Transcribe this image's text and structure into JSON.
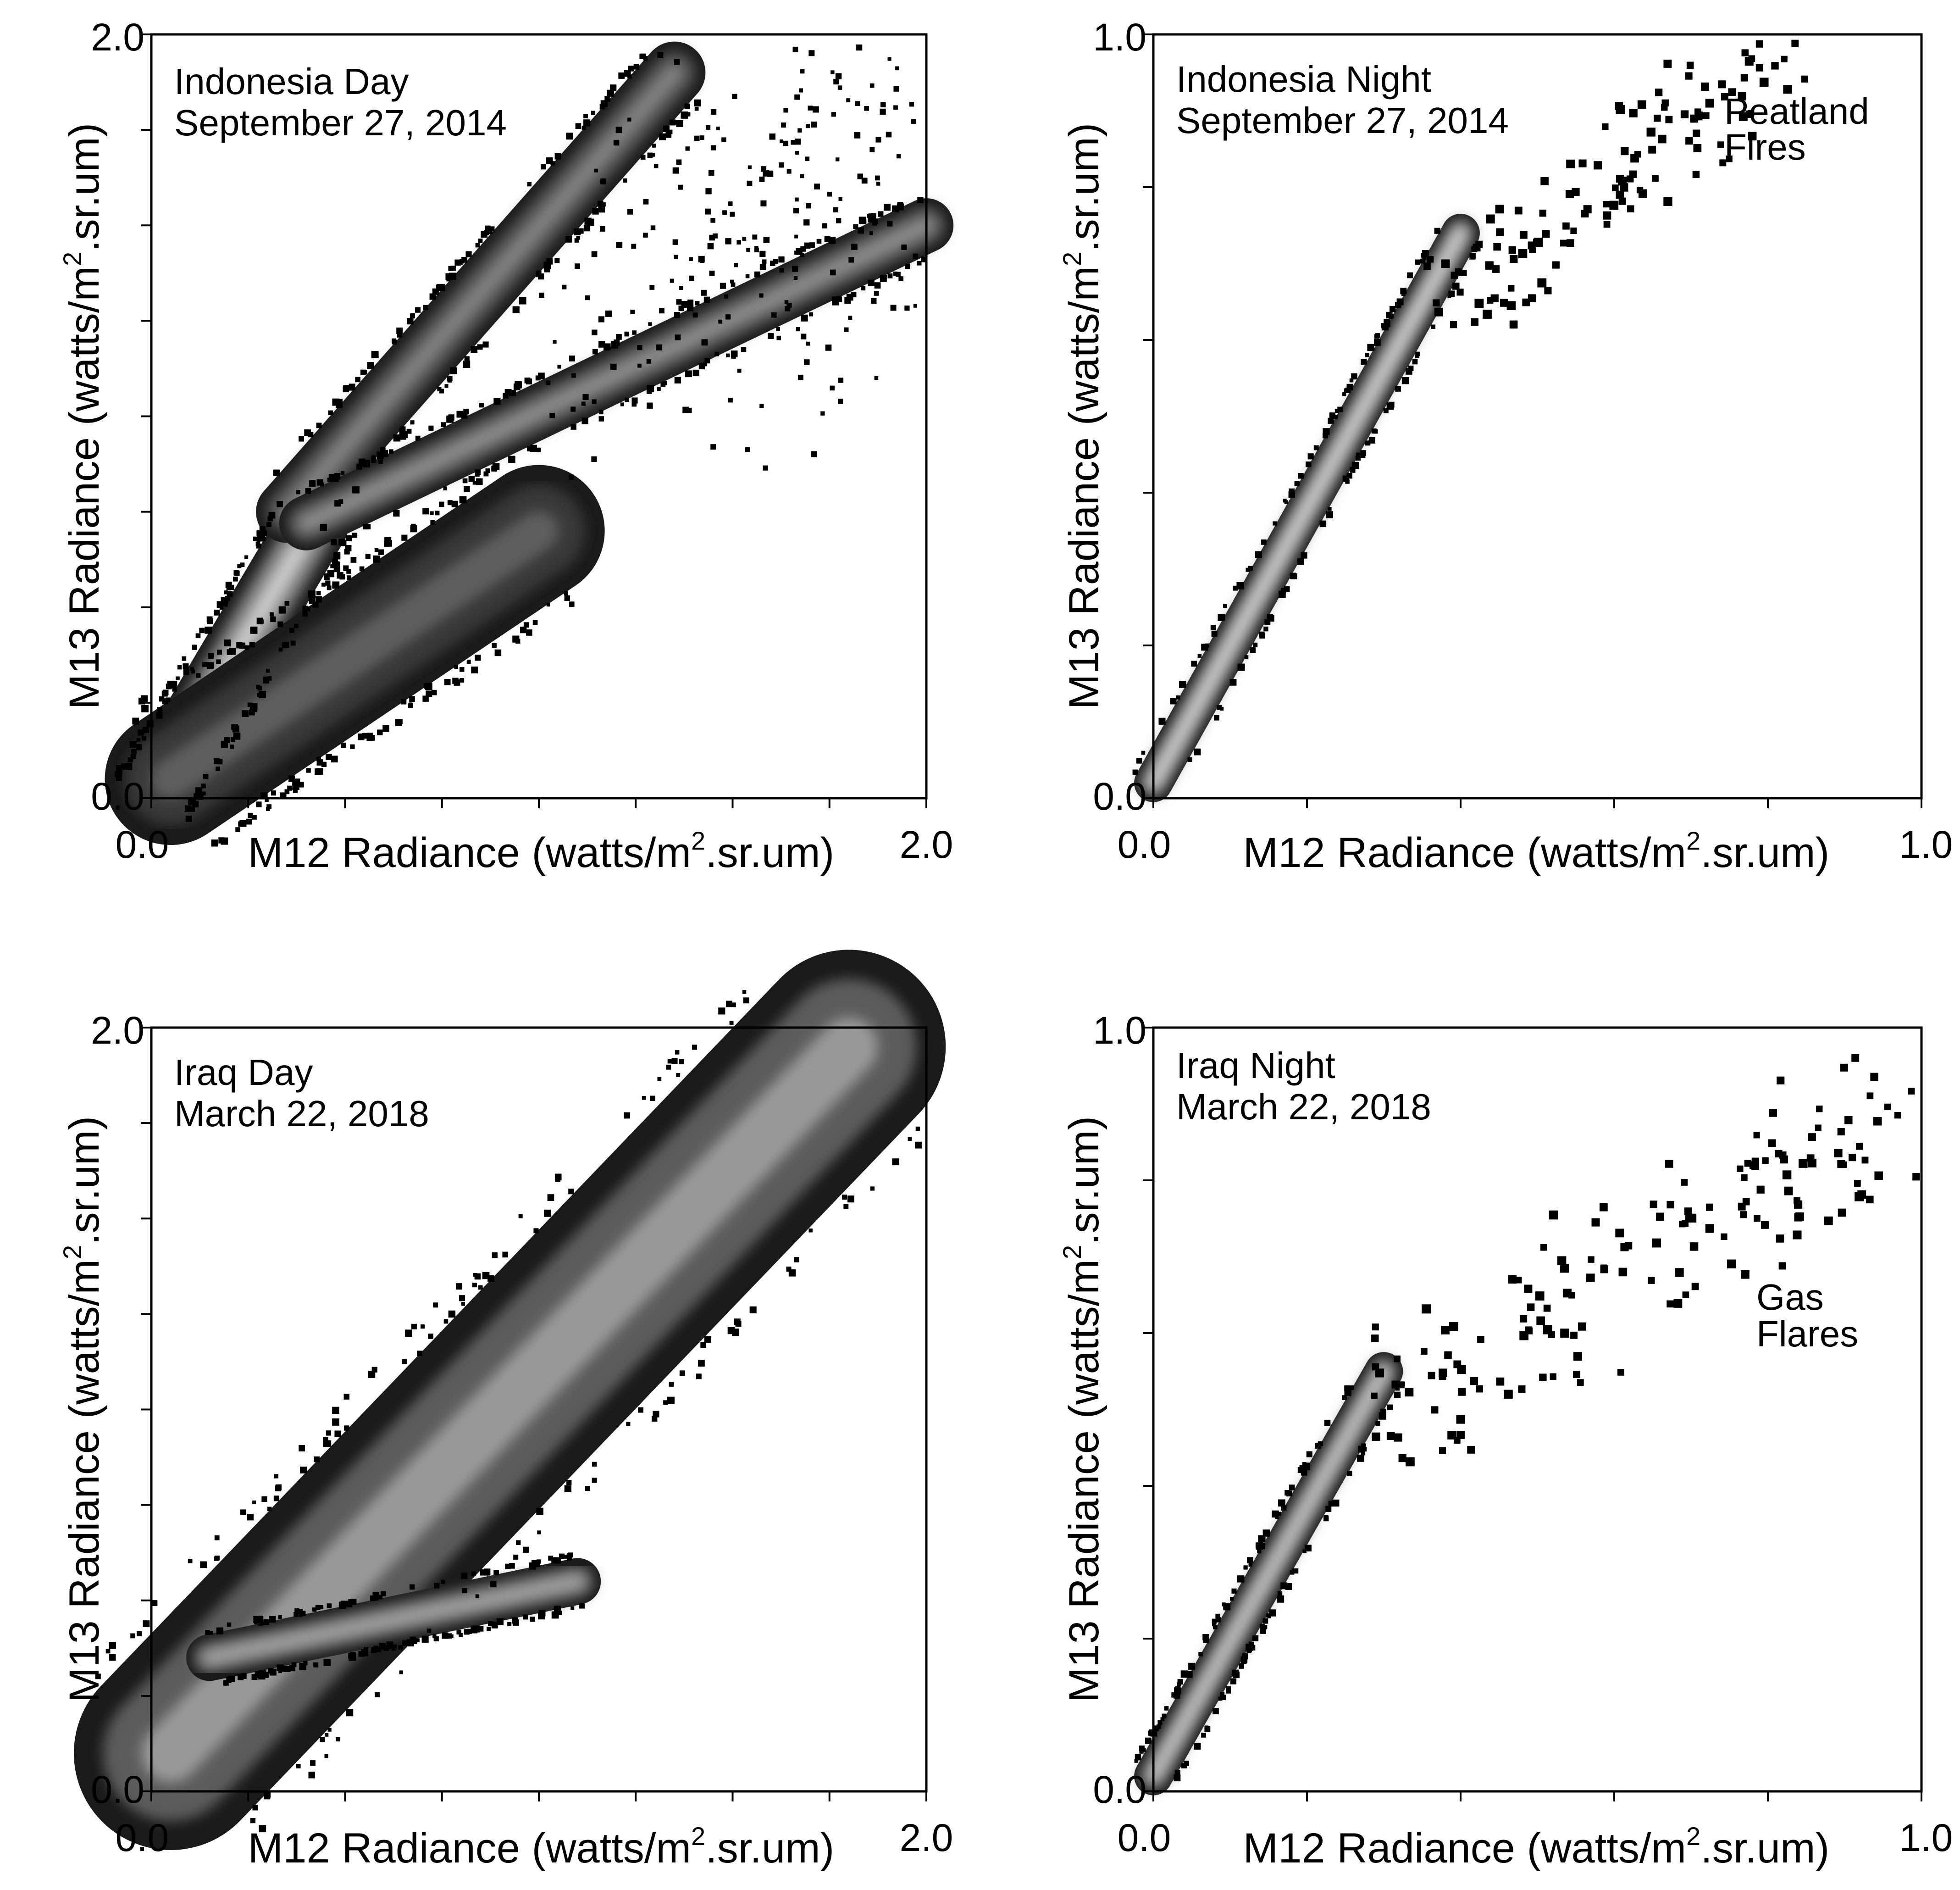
{
  "chart_data": [
    {
      "type": "heatmap",
      "title": "Indonesia Day",
      "subtitle": "September 27, 2014",
      "xlabel": "M12 Radiance (watts/m2.sr.um)",
      "ylabel": "M13 Radiance (watts/m2.sr.um)",
      "xlim": [
        0.0,
        2.0
      ],
      "ylim": [
        0.0,
        2.0
      ],
      "x_tick_labels": [
        "0.0",
        "2.0"
      ],
      "y_tick_labels": [
        "0.0",
        "2.0"
      ],
      "x_ticks": [
        0.0,
        0.25,
        0.5,
        0.75,
        1.0,
        1.25,
        1.5,
        1.75,
        2.0
      ],
      "y_ticks": [
        0.0,
        0.25,
        0.5,
        0.75,
        1.0,
        1.25,
        1.5,
        1.75,
        2.0
      ],
      "annotations": [],
      "features": [
        {
          "name": "core",
          "from": [
            0.0,
            0.0
          ],
          "to": [
            0.42,
            0.72
          ],
          "width": 0.18,
          "brightness": 0.85
        },
        {
          "name": "steep-branch",
          "from": [
            0.35,
            0.75
          ],
          "to": [
            1.35,
            1.9
          ],
          "width": 0.16,
          "brightness": 0.55
        },
        {
          "name": "shallow-branch",
          "from": [
            0.4,
            0.72
          ],
          "to": [
            2.0,
            1.5
          ],
          "width": 0.14,
          "brightness": 0.6
        },
        {
          "name": "lower-lobe",
          "from": [
            0.05,
            0.05
          ],
          "to": [
            1.0,
            0.7
          ],
          "width": 0.34,
          "brightness": 0.4
        },
        {
          "name": "scatter",
          "from": [
            1.3,
            1.2
          ],
          "to": [
            2.0,
            2.0
          ],
          "width": 0.8,
          "brightness": 0.0
        }
      ]
    },
    {
      "type": "heatmap",
      "title": "Indonesia Night",
      "subtitle": "September 27, 2014",
      "xlabel": "M12 Radiance (watts/m2.sr.um)",
      "ylabel": "M13 Radiance (watts/m2.sr.um)",
      "xlim": [
        0.0,
        1.0
      ],
      "ylim": [
        0.0,
        1.0
      ],
      "x_tick_labels": [
        "0.0",
        "1.0"
      ],
      "y_tick_labels": [
        "0.0",
        "1.0"
      ],
      "x_ticks": [
        0.0,
        0.2,
        0.4,
        0.6,
        0.8,
        1.0
      ],
      "y_ticks": [
        0.0,
        0.2,
        0.4,
        0.6,
        0.8,
        1.0
      ],
      "annotations": [
        "Peatland",
        "Fires"
      ],
      "features": [
        {
          "name": "core",
          "from": [
            0.0,
            0.02
          ],
          "to": [
            0.4,
            0.74
          ],
          "width": 0.05,
          "brightness": 0.9
        },
        {
          "name": "fire-tail",
          "from": [
            0.38,
            0.65
          ],
          "to": [
            0.82,
            0.99
          ],
          "width": 0.12,
          "brightness": 0.0
        }
      ]
    },
    {
      "type": "heatmap",
      "title": "Iraq Day",
      "subtitle": "March 22, 2018",
      "xlabel": "M12 Radiance (watts/m2.sr.um)",
      "ylabel": "M13 Radiance (watts/m2.sr.um)",
      "xlim": [
        0.0,
        2.0
      ],
      "ylim": [
        0.0,
        2.0
      ],
      "x_tick_labels": [
        "0.0",
        "2.0"
      ],
      "y_tick_labels": [
        "0.0",
        "2.0"
      ],
      "x_ticks": [
        0.0,
        0.25,
        0.5,
        0.75,
        1.0,
        1.25,
        1.5,
        1.75,
        2.0
      ],
      "y_ticks": [
        0.0,
        0.25,
        0.5,
        0.75,
        1.0,
        1.25,
        1.5,
        1.75,
        2.0
      ],
      "annotations": [],
      "features": [
        {
          "name": "main-band",
          "from": [
            0.05,
            0.1
          ],
          "to": [
            1.8,
            1.95
          ],
          "width": 0.5,
          "brightness": 0.65
        },
        {
          "name": "lower-arm",
          "from": [
            0.15,
            0.35
          ],
          "to": [
            1.1,
            0.55
          ],
          "width": 0.12,
          "brightness": 0.7
        }
      ]
    },
    {
      "type": "heatmap",
      "title": "Iraq Night",
      "subtitle": "March 22, 2018",
      "xlabel": "M12 Radiance (watts/m2.sr.um)",
      "ylabel": "M13 Radiance (watts/m2.sr.um)",
      "xlim": [
        0.0,
        1.0
      ],
      "ylim": [
        0.0,
        1.0
      ],
      "x_tick_labels": [
        "0.0",
        "1.0"
      ],
      "y_tick_labels": [
        "0.0",
        "1.0"
      ],
      "x_ticks": [
        0.0,
        0.2,
        0.4,
        0.6,
        0.8,
        1.0
      ],
      "y_ticks": [
        0.0,
        0.2,
        0.4,
        0.6,
        0.8,
        1.0
      ],
      "annotations": [
        "Gas",
        "Flares"
      ],
      "features": [
        {
          "name": "core",
          "from": [
            0.0,
            0.02
          ],
          "to": [
            0.3,
            0.55
          ],
          "width": 0.05,
          "brightness": 0.85
        },
        {
          "name": "flare-tail",
          "from": [
            0.3,
            0.5
          ],
          "to": [
            1.0,
            0.92
          ],
          "width": 0.18,
          "brightness": 0.0
        }
      ]
    }
  ]
}
